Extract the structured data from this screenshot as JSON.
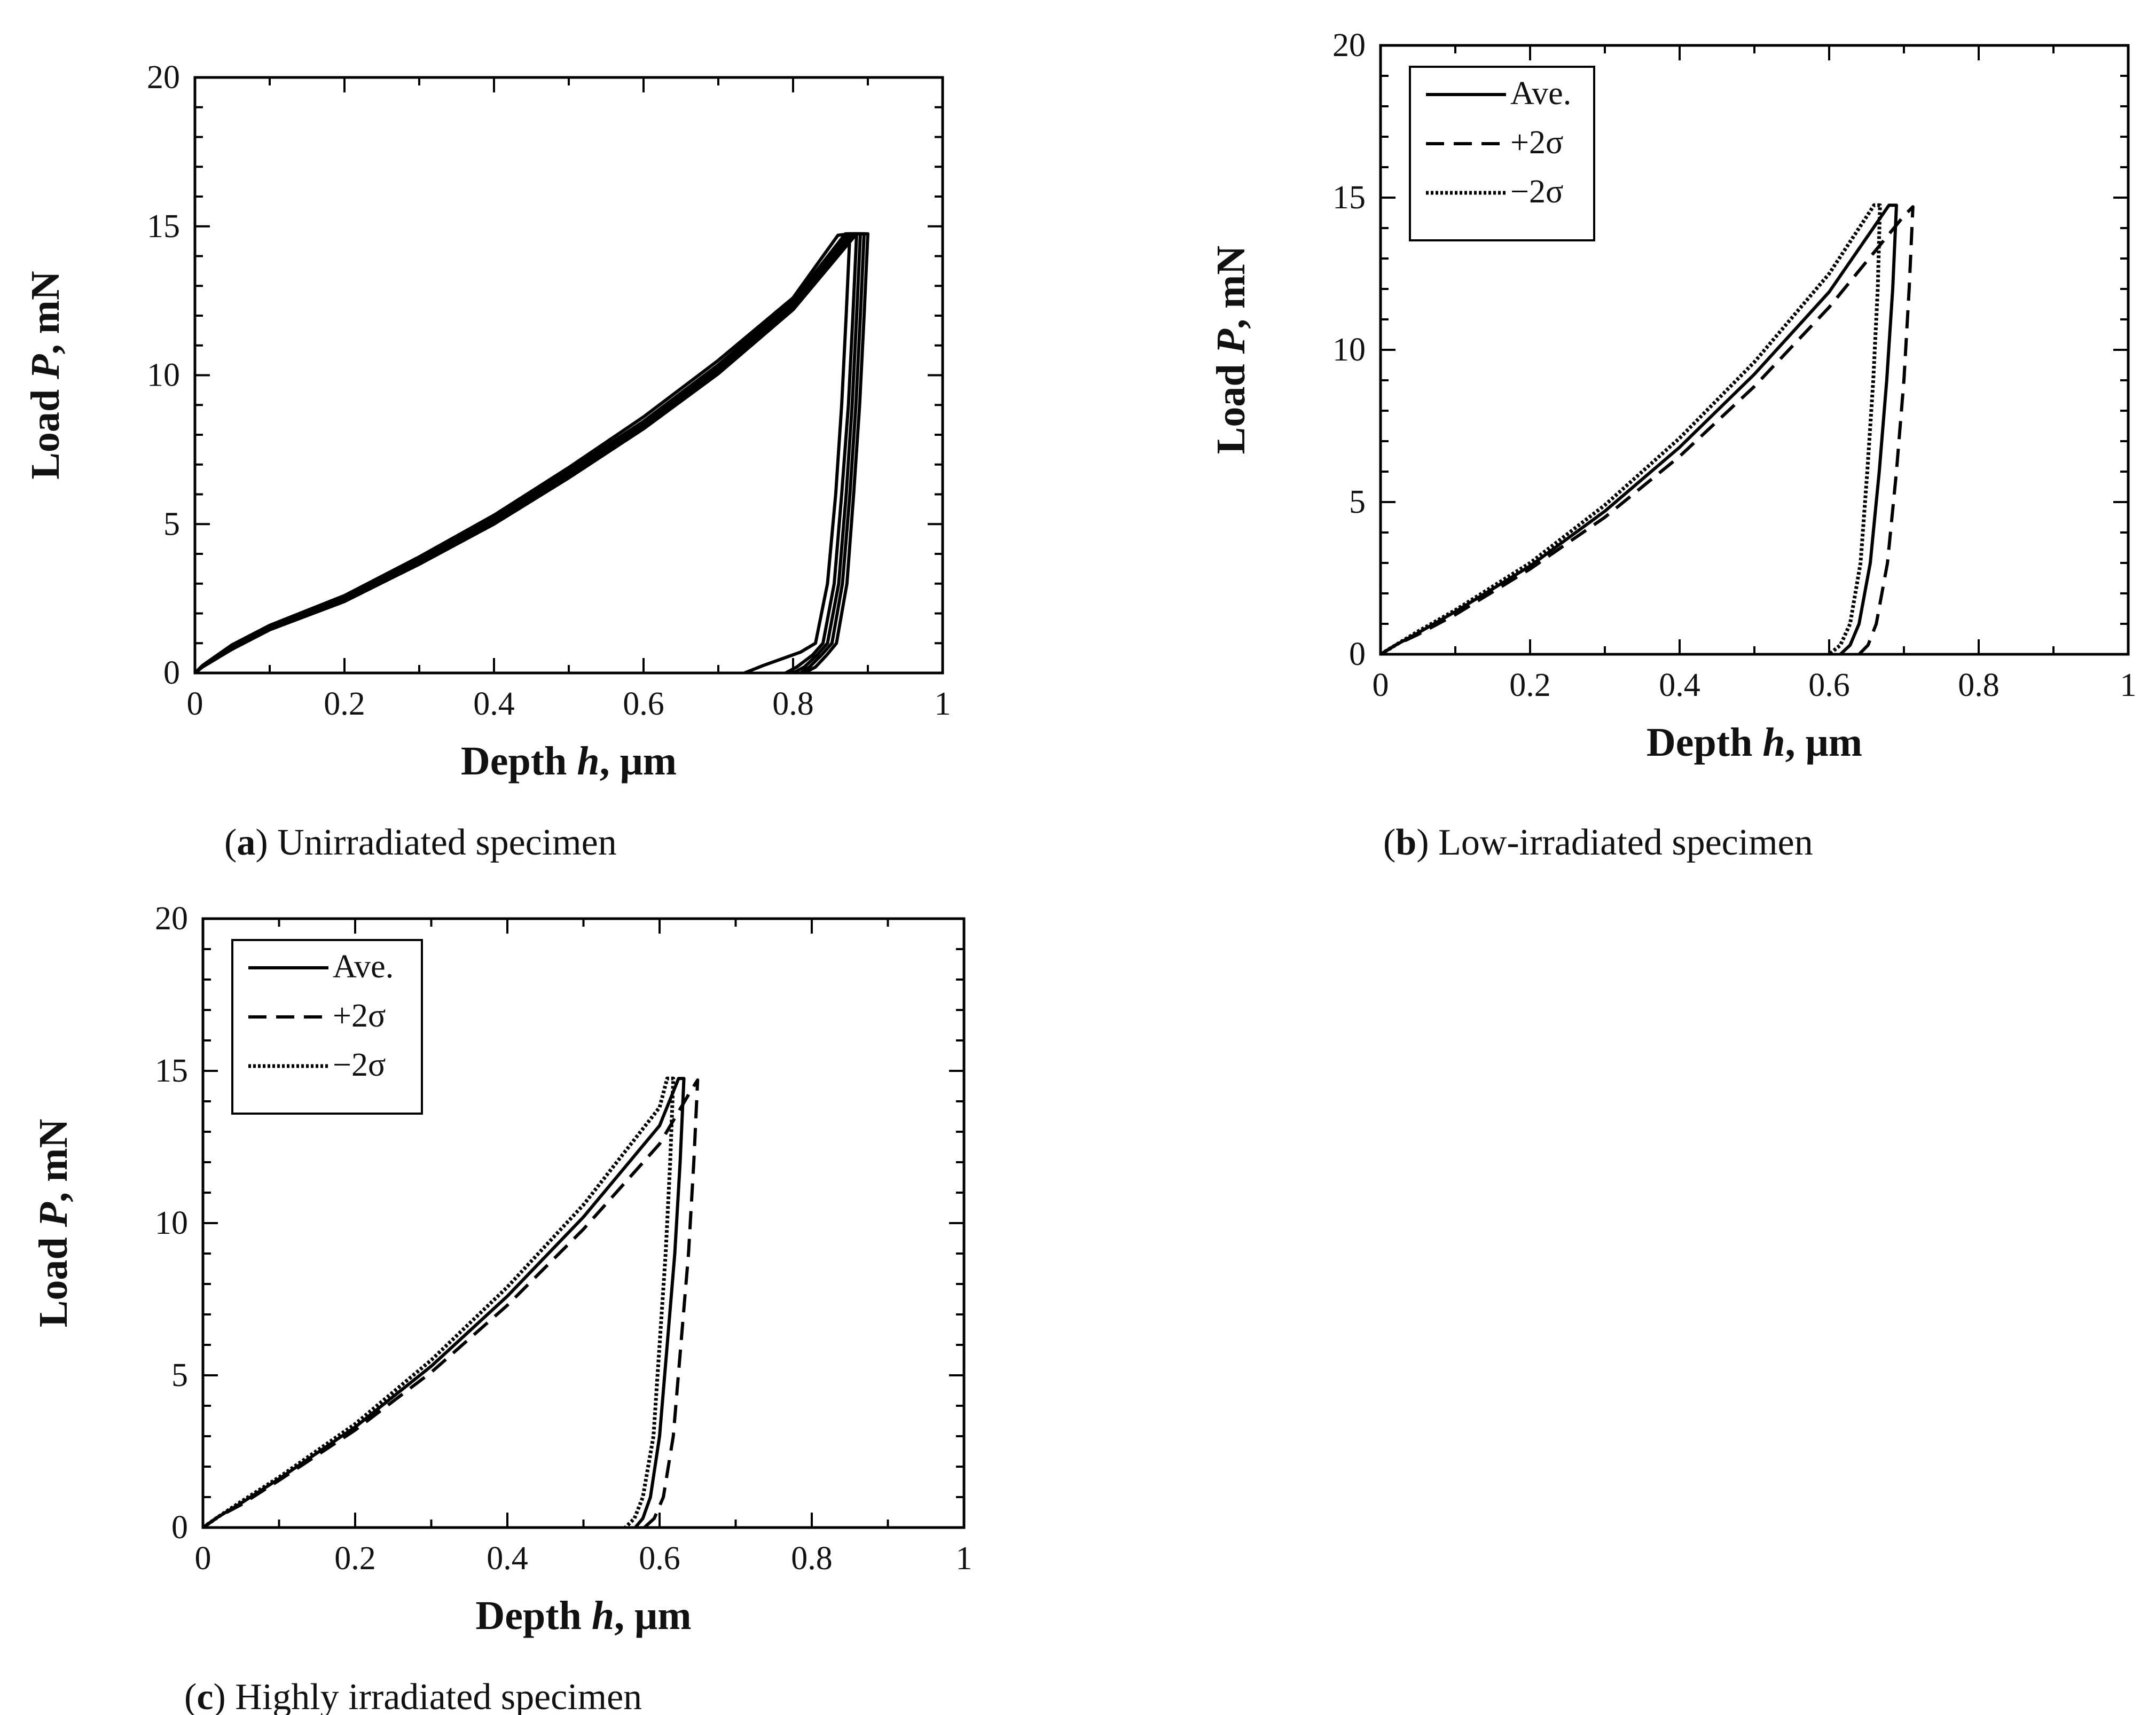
{
  "charts": [
    {
      "type": "line",
      "id": "a",
      "caption_letter": "a",
      "caption_text": "Unirradiated specimen",
      "xlabel_prefix": "Depth ",
      "xlabel_var": "h",
      "xlabel_suffix": ", μm",
      "ylabel_prefix": "Load ",
      "ylabel_var": "P",
      "ylabel_suffix": ", mN",
      "xlim": [
        0,
        1
      ],
      "ylim": [
        0,
        20
      ],
      "xticks": [
        0,
        0.2,
        0.4,
        0.6,
        0.8,
        1
      ],
      "xtick_labels": [
        "0",
        "0.2",
        "0.4",
        "0.6",
        "0.8",
        "1"
      ],
      "yticks": [
        0,
        5,
        10,
        15,
        20
      ],
      "ytick_labels": [
        "0",
        "5",
        "10",
        "15",
        "20"
      ],
      "legend": null,
      "series": [
        {
          "style": "solid",
          "x": [
            0,
            0.01,
            0.03,
            0.05,
            0.1,
            0.2,
            0.3,
            0.4,
            0.5,
            0.6,
            0.7,
            0.8,
            0.86,
            0.876,
            0.871,
            0.865,
            0.857,
            0.846,
            0.83,
            0.81,
            0.76,
            0.735
          ],
          "y": [
            0,
            0.25,
            0.6,
            0.95,
            1.6,
            2.6,
            3.9,
            5.3,
            6.9,
            8.6,
            10.5,
            12.6,
            14.7,
            14.75,
            12.0,
            9.0,
            6.0,
            3.0,
            1.0,
            0.7,
            0.25,
            0
          ]
        },
        {
          "style": "solid",
          "x": [
            0,
            0.01,
            0.03,
            0.05,
            0.1,
            0.2,
            0.3,
            0.4,
            0.5,
            0.6,
            0.7,
            0.8,
            0.87,
            0.885,
            0.88,
            0.874,
            0.865,
            0.855,
            0.84,
            0.826,
            0.805,
            0.79
          ],
          "y": [
            0,
            0.2,
            0.55,
            0.9,
            1.55,
            2.55,
            3.8,
            5.2,
            6.8,
            8.45,
            10.35,
            12.5,
            14.75,
            14.75,
            12.0,
            9.0,
            6.0,
            3.0,
            1.0,
            0.6,
            0.2,
            0
          ]
        },
        {
          "style": "solid",
          "x": [
            0,
            0.01,
            0.03,
            0.05,
            0.1,
            0.2,
            0.3,
            0.4,
            0.5,
            0.6,
            0.7,
            0.8,
            0.875,
            0.89,
            0.885,
            0.879,
            0.871,
            0.861,
            0.846,
            0.832,
            0.815,
            0.8
          ],
          "y": [
            0,
            0.2,
            0.5,
            0.85,
            1.5,
            2.5,
            3.75,
            5.1,
            6.7,
            8.35,
            10.25,
            12.4,
            14.75,
            14.75,
            12.0,
            9.0,
            6.0,
            3.0,
            1.0,
            0.6,
            0.2,
            0
          ]
        },
        {
          "style": "solid",
          "x": [
            0,
            0.01,
            0.03,
            0.05,
            0.1,
            0.2,
            0.3,
            0.4,
            0.5,
            0.6,
            0.7,
            0.8,
            0.88,
            0.895,
            0.89,
            0.884,
            0.876,
            0.866,
            0.852,
            0.838,
            0.822,
            0.81
          ],
          "y": [
            0,
            0.2,
            0.5,
            0.85,
            1.5,
            2.45,
            3.7,
            5.05,
            6.6,
            8.3,
            10.15,
            12.3,
            14.75,
            14.75,
            12.0,
            9.0,
            6.0,
            3.0,
            1.0,
            0.6,
            0.2,
            0
          ]
        },
        {
          "style": "solid",
          "x": [
            0,
            0.01,
            0.03,
            0.05,
            0.1,
            0.2,
            0.3,
            0.4,
            0.5,
            0.6,
            0.7,
            0.8,
            0.885,
            0.9,
            0.895,
            0.889,
            0.881,
            0.872,
            0.858,
            0.845,
            0.83,
            0.815
          ],
          "y": [
            0,
            0.2,
            0.5,
            0.8,
            1.45,
            2.4,
            3.65,
            5.0,
            6.55,
            8.2,
            10.05,
            12.2,
            14.75,
            14.75,
            12.0,
            9.0,
            6.0,
            3.0,
            1.0,
            0.6,
            0.2,
            0
          ]
        }
      ]
    },
    {
      "type": "line",
      "id": "b",
      "caption_letter": "b",
      "caption_text": "Low-irradiated specimen",
      "xlabel_prefix": "Depth ",
      "xlabel_var": "h",
      "xlabel_suffix": ", μm",
      "ylabel_prefix": "Load ",
      "ylabel_var": "P",
      "ylabel_suffix": ", mN",
      "xlim": [
        0,
        1
      ],
      "ylim": [
        0,
        20
      ],
      "xticks": [
        0,
        0.2,
        0.4,
        0.6,
        0.8,
        1
      ],
      "xtick_labels": [
        "0",
        "0.2",
        "0.4",
        "0.6",
        "0.8",
        "1"
      ],
      "yticks": [
        0,
        5,
        10,
        15,
        20
      ],
      "ytick_labels": [
        "0",
        "5",
        "10",
        "15",
        "20"
      ],
      "legend": {
        "position": "top-left",
        "entries": [
          {
            "label": "Ave.",
            "style": "solid"
          },
          {
            "label": "+2σ",
            "style": "dashed"
          },
          {
            "label": "−2σ",
            "style": "dotted"
          }
        ]
      },
      "series": [
        {
          "name": "Ave.",
          "style": "solid",
          "x": [
            0,
            0.02,
            0.05,
            0.1,
            0.2,
            0.3,
            0.4,
            0.5,
            0.6,
            0.68,
            0.69,
            0.685,
            0.677,
            0.667,
            0.655,
            0.64,
            0.628,
            0.615
          ],
          "y": [
            0,
            0.3,
            0.7,
            1.4,
            2.9,
            4.7,
            6.8,
            9.2,
            11.9,
            14.75,
            14.75,
            12.0,
            9.0,
            6.0,
            3.0,
            1.0,
            0.3,
            0
          ]
        },
        {
          "name": "+2σ",
          "style": "dashed",
          "x": [
            0,
            0.02,
            0.05,
            0.1,
            0.2,
            0.3,
            0.4,
            0.5,
            0.6,
            0.7,
            0.712,
            0.707,
            0.7,
            0.69,
            0.678,
            0.663,
            0.652,
            0.64
          ],
          "y": [
            0,
            0.3,
            0.65,
            1.3,
            2.8,
            4.5,
            6.5,
            8.8,
            11.4,
            14.4,
            14.7,
            12.0,
            9.0,
            6.0,
            3.0,
            1.0,
            0.3,
            0
          ]
        },
        {
          "name": "−2σ",
          "style": "dotted",
          "x": [
            0,
            0.02,
            0.05,
            0.1,
            0.2,
            0.3,
            0.4,
            0.5,
            0.6,
            0.66,
            0.668,
            0.665,
            0.659,
            0.651,
            0.642,
            0.628,
            0.615,
            0.6
          ],
          "y": [
            0,
            0.3,
            0.75,
            1.45,
            3.0,
            4.9,
            7.1,
            9.6,
            12.5,
            14.75,
            14.75,
            12.0,
            9.0,
            6.0,
            3.0,
            1.0,
            0.3,
            0
          ]
        }
      ]
    },
    {
      "type": "line",
      "id": "c",
      "caption_letter": "c",
      "caption_text": "Highly irradiated specimen",
      "xlabel_prefix": "Depth ",
      "xlabel_var": "h",
      "xlabel_suffix": ", μm",
      "ylabel_prefix": "Load ",
      "ylabel_var": "P",
      "ylabel_suffix": ", mN",
      "xlim": [
        0,
        1
      ],
      "ylim": [
        0,
        20
      ],
      "xticks": [
        0,
        0.2,
        0.4,
        0.6,
        0.8,
        1
      ],
      "xtick_labels": [
        "0",
        "0.2",
        "0.4",
        "0.6",
        "0.8",
        "1"
      ],
      "yticks": [
        0,
        5,
        10,
        15,
        20
      ],
      "ytick_labels": [
        "0",
        "5",
        "10",
        "15",
        "20"
      ],
      "legend": {
        "position": "top-left",
        "entries": [
          {
            "label": "Ave.",
            "style": "solid"
          },
          {
            "label": "+2σ",
            "style": "dashed"
          },
          {
            "label": "−2σ",
            "style": "dotted"
          }
        ]
      },
      "series": [
        {
          "name": "Ave.",
          "style": "solid",
          "x": [
            0,
            0.02,
            0.05,
            0.1,
            0.2,
            0.3,
            0.4,
            0.5,
            0.6,
            0.625,
            0.632,
            0.627,
            0.62,
            0.61,
            0.6,
            0.588,
            0.578,
            0.568
          ],
          "y": [
            0,
            0.35,
            0.8,
            1.6,
            3.3,
            5.3,
            7.6,
            10.2,
            13.2,
            14.75,
            14.75,
            12.0,
            9.0,
            6.0,
            3.0,
            1.0,
            0.3,
            0
          ]
        },
        {
          "name": "+2σ",
          "style": "dashed",
          "x": [
            0,
            0.02,
            0.05,
            0.1,
            0.2,
            0.3,
            0.4,
            0.5,
            0.6,
            0.64,
            0.65,
            0.645,
            0.638,
            0.628,
            0.618,
            0.605,
            0.593,
            0.58
          ],
          "y": [
            0,
            0.35,
            0.75,
            1.55,
            3.2,
            5.1,
            7.3,
            9.8,
            12.6,
            14.3,
            14.7,
            12.0,
            9.0,
            6.0,
            3.0,
            1.0,
            0.3,
            0
          ]
        },
        {
          "name": "−2σ",
          "style": "dotted",
          "x": [
            0,
            0.02,
            0.05,
            0.1,
            0.2,
            0.3,
            0.4,
            0.5,
            0.6,
            0.61,
            0.618,
            0.614,
            0.608,
            0.6,
            0.592,
            0.578,
            0.567,
            0.555
          ],
          "y": [
            0,
            0.35,
            0.85,
            1.65,
            3.4,
            5.5,
            7.9,
            10.6,
            13.8,
            14.75,
            14.75,
            12.0,
            9.0,
            6.0,
            3.0,
            1.0,
            0.3,
            0
          ]
        }
      ]
    }
  ]
}
